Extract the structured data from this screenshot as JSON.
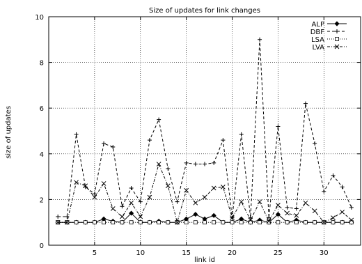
{
  "chart_data": {
    "type": "line",
    "title": "Size of updates for link changes",
    "xlabel": "link id",
    "ylabel": "size of updates",
    "xlim": [
      0,
      34
    ],
    "ylim": [
      0,
      10
    ],
    "xticks": [
      5,
      10,
      15,
      20,
      25,
      30
    ],
    "yticks": [
      0,
      2,
      4,
      6,
      8,
      10
    ],
    "grid": true,
    "legend_position": "top-right",
    "x": [
      1,
      2,
      3,
      4,
      5,
      6,
      7,
      8,
      9,
      10,
      11,
      12,
      13,
      14,
      15,
      16,
      17,
      18,
      19,
      20,
      21,
      22,
      23,
      24,
      25,
      26,
      27,
      28,
      29,
      30,
      31,
      32,
      33
    ],
    "series": [
      {
        "name": "ALP",
        "line_style": "solid",
        "marker": "diamond",
        "values": [
          1.0,
          1.0,
          1.0,
          1.0,
          1.0,
          1.15,
          1.05,
          1.0,
          1.4,
          1.0,
          1.0,
          1.05,
          1.0,
          1.0,
          1.15,
          1.35,
          1.15,
          1.3,
          1.0,
          1.0,
          1.15,
          1.0,
          1.1,
          1.0,
          1.35,
          1.0,
          1.1,
          1.0,
          1.0,
          1.0,
          1.0,
          1.0,
          1.0
        ]
      },
      {
        "name": "DBF",
        "line_style": "dashed",
        "marker": "plus",
        "values": [
          1.25,
          1.25,
          4.85,
          2.55,
          2.25,
          4.45,
          4.3,
          1.7,
          2.5,
          1.9,
          4.6,
          5.5,
          3.35,
          1.9,
          3.6,
          3.55,
          3.55,
          3.6,
          4.6,
          1.2,
          4.85,
          1.2,
          9.0,
          1.2,
          5.2,
          1.65,
          1.6,
          6.2,
          4.45,
          2.35,
          3.05,
          2.55,
          1.65
        ]
      },
      {
        "name": "LSA",
        "line_style": "dotted",
        "marker": "square",
        "values": [
          1.0,
          1.0,
          1.0,
          1.0,
          1.0,
          1.0,
          1.0,
          1.0,
          1.0,
          1.0,
          1.0,
          1.0,
          1.0,
          1.0,
          1.0,
          1.0,
          1.0,
          1.0,
          1.0,
          1.0,
          1.0,
          1.0,
          1.0,
          1.0,
          1.0,
          1.0,
          1.0,
          1.0,
          1.0,
          1.0,
          1.0,
          1.0,
          1.0
        ]
      },
      {
        "name": "LVA",
        "line_style": "dash-dot",
        "marker": "cross",
        "values": [
          1.0,
          1.0,
          2.75,
          2.6,
          2.1,
          2.7,
          1.6,
          1.25,
          1.85,
          1.25,
          2.1,
          3.55,
          2.6,
          1.0,
          2.4,
          1.85,
          2.1,
          2.5,
          2.55,
          1.2,
          1.9,
          1.1,
          1.9,
          1.05,
          1.75,
          1.4,
          1.3,
          1.85,
          1.5,
          1.0,
          1.2,
          1.45,
          1.1
        ]
      }
    ]
  }
}
